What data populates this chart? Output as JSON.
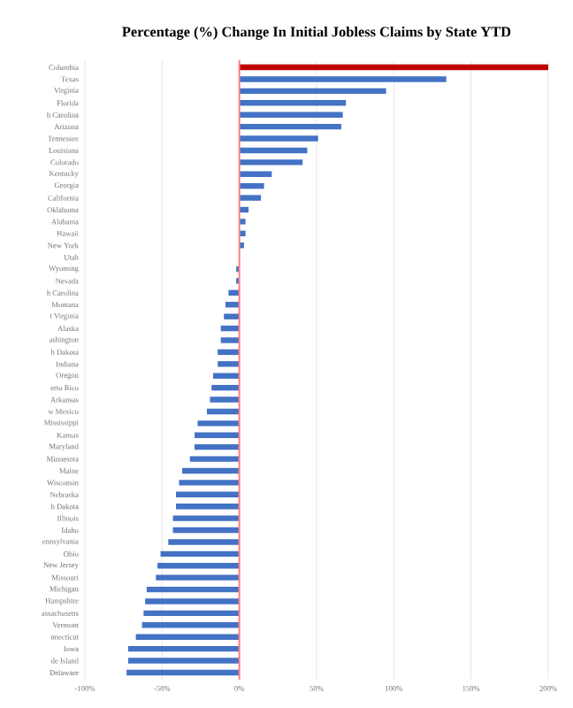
{
  "chart_data": {
    "type": "bar",
    "orientation": "horizontal",
    "title": "Percentage (%) Change In Initial Jobless Claims by State YTD",
    "categories": [
      "Columbia",
      "Texas",
      "Virginia",
      "Florida",
      "h Carolina",
      "Arizona",
      "Tennessee",
      "Louisiana",
      "Colorado",
      "Kentucky",
      "Georgia",
      "California",
      "Oklahoma",
      "Alabama",
      "Hawaii",
      "New York",
      "Utah",
      "Wyoming",
      "Nevada",
      "h Carolina",
      "Montana",
      "t Virginia",
      "Alaska",
      "ashington",
      "h Dakota",
      "Indiana",
      "Oregon",
      "erto Rico",
      "Arkansas",
      "w Mexico",
      "Mississippi",
      "Kansas",
      "Maryland",
      "Minnesota",
      "Maine",
      "Wisconsin",
      "Nebraska",
      "h Dakota",
      "Illinois",
      "Idaho",
      "ennsylvania",
      "Ohio",
      "New Jersey",
      "Missouri",
      "Michigan",
      "Hampshire",
      "assachusetts",
      "Vermont",
      "nnecticut",
      "Iowa",
      "de Island",
      "Delaware"
    ],
    "values": [
      200,
      134,
      95,
      69,
      67,
      66,
      51,
      44,
      41,
      21,
      16,
      14,
      6,
      4,
      4,
      3,
      0,
      -2,
      -2,
      -7,
      -9,
      -10,
      -12,
      -12,
      -14,
      -14,
      -17,
      -18,
      -19,
      -21,
      -27,
      -29,
      -29,
      -32,
      -37,
      -39,
      -41,
      -41,
      -43,
      -43,
      -46,
      -51,
      -53,
      -54,
      -60,
      -61,
      -62,
      -63,
      -67,
      -72,
      -72,
      -73
    ],
    "colors": [
      "#c00000",
      "#4472c4",
      "#4472c4",
      "#4472c4",
      "#4472c4",
      "#4472c4",
      "#4472c4",
      "#4472c4",
      "#4472c4",
      "#4472c4",
      "#4472c4",
      "#4472c4",
      "#4472c4",
      "#4472c4",
      "#4472c4",
      "#4472c4",
      "#4472c4",
      "#4472c4",
      "#4472c4",
      "#4472c4",
      "#4472c4",
      "#4472c4",
      "#4472c4",
      "#4472c4",
      "#4472c4",
      "#4472c4",
      "#4472c4",
      "#4472c4",
      "#4472c4",
      "#4472c4",
      "#4472c4",
      "#4472c4",
      "#4472c4",
      "#4472c4",
      "#4472c4",
      "#4472c4",
      "#4472c4",
      "#4472c4",
      "#4472c4",
      "#4472c4",
      "#4472c4",
      "#4472c4",
      "#4472c4",
      "#4472c4",
      "#4472c4",
      "#4472c4",
      "#4472c4",
      "#4472c4",
      "#4472c4",
      "#4472c4",
      "#4472c4",
      "#4472c4"
    ],
    "xlim": [
      -100,
      200
    ],
    "xticks": [
      {
        "value": -100,
        "label": "-100%"
      },
      {
        "value": -50,
        "label": "-50%"
      },
      {
        "value": 0,
        "label": "0%"
      },
      {
        "value": 50,
        "label": "50%"
      },
      {
        "value": 100,
        "label": "100%"
      },
      {
        "value": 150,
        "label": "150%"
      },
      {
        "value": 200,
        "label": "200%"
      }
    ],
    "grid": "x",
    "ref_lines": [
      {
        "axis": "x",
        "value": 0,
        "color": "#ff8080"
      }
    ]
  }
}
